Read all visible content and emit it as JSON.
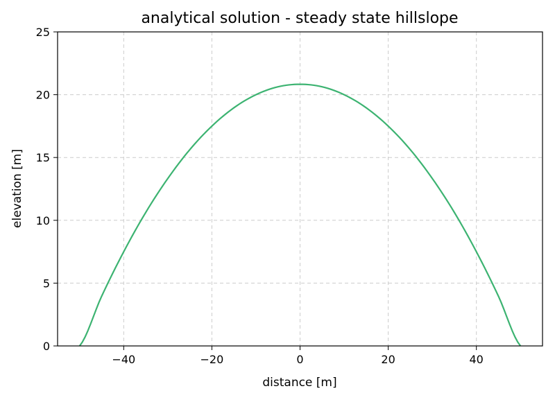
{
  "chart_data": {
    "type": "line",
    "title": "analytical solution - steady state hillslope",
    "xlabel": "distance [m]",
    "ylabel": "elevation [m]",
    "xlim": [
      -55,
      55
    ],
    "ylim": [
      0,
      25
    ],
    "xticks": [
      -40,
      -20,
      0,
      20,
      40
    ],
    "xtick_labels": [
      "−40",
      "−20",
      "0",
      "20",
      "40"
    ],
    "yticks": [
      0,
      5,
      10,
      15,
      20,
      25
    ],
    "ytick_labels": [
      "0",
      "5",
      "10",
      "15",
      "20",
      "25"
    ],
    "grid": true,
    "series": [
      {
        "color": "#3cb371",
        "x": [
          -50,
          -45,
          -40,
          -35,
          -30,
          -25,
          -20,
          -15,
          -10,
          -5,
          0,
          5,
          10,
          15,
          20,
          25,
          30,
          35,
          40,
          45,
          50
        ],
        "values": [
          0,
          3.96,
          7.5,
          10.63,
          13.33,
          15.63,
          17.5,
          18.96,
          20.0,
          20.63,
          20.83,
          20.63,
          20.0,
          18.96,
          17.5,
          15.63,
          13.33,
          10.63,
          7.5,
          3.96,
          0
        ]
      }
    ]
  }
}
